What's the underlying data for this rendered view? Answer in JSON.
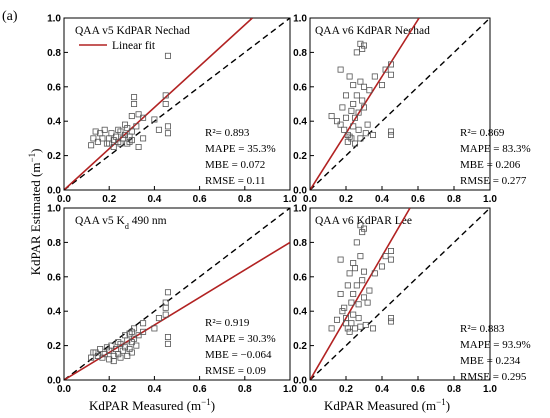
{
  "figure": {
    "panel_tag": "(a)",
    "y_axis_label_base": "KdPAR Estimated (m",
    "x_axis_label_base": "KdPAR Measured (m",
    "unit_exponent": "−1",
    "close_paren": ")"
  },
  "legend": {
    "linear_fit_label": "Linear fit"
  },
  "colors": {
    "fit_line": "#b22222",
    "one_to_one": "#000000",
    "marker": "#555555"
  },
  "chart_data": [
    {
      "type": "scatter",
      "title": "QAA v5 KdPAR Nechad",
      "xlim": [
        0,
        1
      ],
      "ylim": [
        0,
        1
      ],
      "xticks": [
        "0.0",
        "0.2",
        "0.4",
        "0.6",
        "0.8",
        "1.0"
      ],
      "yticks": [
        "0.0",
        "0.2",
        "0.4",
        "0.6",
        "0.8",
        "1.0"
      ],
      "stats": [
        "R²= 0.893",
        "MAPE = 35.3%",
        "MBE = 0.072",
        "RMSE = 0.11"
      ],
      "fit": {
        "slope": 1.2,
        "intercept": 0.0
      },
      "points": [
        [
          0.12,
          0.26
        ],
        [
          0.13,
          0.3
        ],
        [
          0.15,
          0.28
        ],
        [
          0.16,
          0.33
        ],
        [
          0.18,
          0.35
        ],
        [
          0.2,
          0.27
        ],
        [
          0.2,
          0.3
        ],
        [
          0.21,
          0.33
        ],
        [
          0.22,
          0.29
        ],
        [
          0.22,
          0.25
        ],
        [
          0.23,
          0.31
        ],
        [
          0.24,
          0.28
        ],
        [
          0.25,
          0.34
        ],
        [
          0.25,
          0.27
        ],
        [
          0.26,
          0.3
        ],
        [
          0.27,
          0.32
        ],
        [
          0.27,
          0.38
        ],
        [
          0.28,
          0.36
        ],
        [
          0.28,
          0.27
        ],
        [
          0.29,
          0.31
        ],
        [
          0.3,
          0.43
        ],
        [
          0.3,
          0.34
        ],
        [
          0.3,
          0.29
        ],
        [
          0.31,
          0.5
        ],
        [
          0.31,
          0.54
        ],
        [
          0.32,
          0.37
        ],
        [
          0.33,
          0.25
        ],
        [
          0.35,
          0.3
        ],
        [
          0.35,
          0.42
        ],
        [
          0.4,
          0.41
        ],
        [
          0.42,
          0.35
        ],
        [
          0.45,
          0.55
        ],
        [
          0.45,
          0.5
        ],
        [
          0.46,
          0.78
        ],
        [
          0.46,
          0.37
        ],
        [
          0.46,
          0.33
        ],
        [
          0.14,
          0.34
        ],
        [
          0.17,
          0.3
        ],
        [
          0.19,
          0.27
        ],
        [
          0.24,
          0.35
        ],
        [
          0.29,
          0.28
        ],
        [
          0.33,
          0.44
        ]
      ]
    },
    {
      "type": "scatter",
      "title": "QAA v6 KdPAR Nechad",
      "xlim": [
        0,
        1
      ],
      "ylim": [
        0,
        1
      ],
      "xticks": [
        "0.0",
        "0.2",
        "0.4",
        "0.6",
        "0.8",
        "1.0"
      ],
      "yticks": [
        "0.0",
        "0.2",
        "0.4",
        "0.6",
        "0.8",
        "1.0"
      ],
      "stats": [
        "R²= 0.869",
        "MAPE = 83.3%",
        "MBE = 0.206",
        "RMSE = 0.277"
      ],
      "fit": {
        "slope": 1.65,
        "intercept": 0.0
      },
      "points": [
        [
          0.12,
          0.43
        ],
        [
          0.15,
          0.4
        ],
        [
          0.17,
          0.38
        ],
        [
          0.18,
          0.48
        ],
        [
          0.19,
          0.35
        ],
        [
          0.2,
          0.55
        ],
        [
          0.2,
          0.42
        ],
        [
          0.21,
          0.32
        ],
        [
          0.21,
          0.28
        ],
        [
          0.22,
          0.31
        ],
        [
          0.22,
          0.66
        ],
        [
          0.23,
          0.46
        ],
        [
          0.23,
          0.3
        ],
        [
          0.24,
          0.5
        ],
        [
          0.24,
          0.37
        ],
        [
          0.25,
          0.27
        ],
        [
          0.25,
          0.42
        ],
        [
          0.26,
          0.8
        ],
        [
          0.26,
          0.55
        ],
        [
          0.27,
          0.45
        ],
        [
          0.27,
          0.35
        ],
        [
          0.28,
          0.63
        ],
        [
          0.28,
          0.3
        ],
        [
          0.29,
          0.82
        ],
        [
          0.29,
          0.52
        ],
        [
          0.3,
          0.84
        ],
        [
          0.3,
          0.6
        ],
        [
          0.3,
          0.48
        ],
        [
          0.31,
          0.33
        ],
        [
          0.32,
          0.38
        ],
        [
          0.33,
          0.58
        ],
        [
          0.35,
          0.32
        ],
        [
          0.36,
          0.66
        ],
        [
          0.4,
          0.61
        ],
        [
          0.42,
          0.7
        ],
        [
          0.45,
          0.73
        ],
        [
          0.45,
          0.67
        ],
        [
          0.45,
          0.34
        ],
        [
          0.45,
          0.32
        ],
        [
          0.17,
          0.7
        ],
        [
          0.24,
          0.61
        ],
        [
          0.28,
          0.85
        ]
      ]
    },
    {
      "type": "scatter",
      "title_main": "QAA v5 K",
      "title_sub": "d",
      "title_tail": " 490 nm",
      "xlim": [
        0,
        1
      ],
      "ylim": [
        0,
        1
      ],
      "xticks": [
        "0.0",
        "0.2",
        "0.4",
        "0.6",
        "0.8",
        "1.0"
      ],
      "yticks": [
        "0.0",
        "0.2",
        "0.4",
        "0.6",
        "0.8",
        "1.0"
      ],
      "stats": [
        "R²= 0.919",
        "MAPE = 30.3%",
        "MBE = −0.064",
        "RMSE = 0.09"
      ],
      "fit": {
        "slope": 0.8,
        "intercept": 0.0
      },
      "points": [
        [
          0.12,
          0.13
        ],
        [
          0.13,
          0.16
        ],
        [
          0.15,
          0.14
        ],
        [
          0.16,
          0.18
        ],
        [
          0.18,
          0.15
        ],
        [
          0.2,
          0.12
        ],
        [
          0.2,
          0.17
        ],
        [
          0.21,
          0.2
        ],
        [
          0.22,
          0.14
        ],
        [
          0.22,
          0.11
        ],
        [
          0.23,
          0.18
        ],
        [
          0.24,
          0.15
        ],
        [
          0.25,
          0.21
        ],
        [
          0.25,
          0.13
        ],
        [
          0.26,
          0.17
        ],
        [
          0.27,
          0.19
        ],
        [
          0.27,
          0.26
        ],
        [
          0.28,
          0.23
        ],
        [
          0.28,
          0.14
        ],
        [
          0.29,
          0.18
        ],
        [
          0.3,
          0.28
        ],
        [
          0.3,
          0.22
        ],
        [
          0.3,
          0.16
        ],
        [
          0.31,
          0.3
        ],
        [
          0.31,
          0.24
        ],
        [
          0.32,
          0.2
        ],
        [
          0.33,
          0.26
        ],
        [
          0.35,
          0.28
        ],
        [
          0.35,
          0.33
        ],
        [
          0.4,
          0.3
        ],
        [
          0.42,
          0.36
        ],
        [
          0.45,
          0.38
        ],
        [
          0.45,
          0.45
        ],
        [
          0.45,
          0.42
        ],
        [
          0.46,
          0.51
        ],
        [
          0.46,
          0.25
        ],
        [
          0.46,
          0.21
        ],
        [
          0.14,
          0.16
        ],
        [
          0.17,
          0.13
        ],
        [
          0.19,
          0.19
        ],
        [
          0.24,
          0.22
        ],
        [
          0.29,
          0.27
        ]
      ]
    },
    {
      "type": "scatter",
      "title": "QAA v6 KdPAR Lee",
      "xlim": [
        0,
        1
      ],
      "ylim": [
        0,
        1
      ],
      "xticks": [
        "0.0",
        "0.2",
        "0.4",
        "0.6",
        "0.8",
        "1.0"
      ],
      "yticks": [
        "0.0",
        "0.2",
        "0.4",
        "0.6",
        "0.8",
        "1.0"
      ],
      "stats": [
        "R²= 0.883",
        "MAPE = 93.9%",
        "MBE = 0.234",
        "RMSE = 0.295"
      ],
      "fit": {
        "slope": 1.8,
        "intercept": 0.0
      },
      "points": [
        [
          0.12,
          0.3
        ],
        [
          0.15,
          0.35
        ],
        [
          0.17,
          0.5
        ],
        [
          0.18,
          0.4
        ],
        [
          0.19,
          0.42
        ],
        [
          0.2,
          0.33
        ],
        [
          0.2,
          0.36
        ],
        [
          0.21,
          0.3
        ],
        [
          0.21,
          0.55
        ],
        [
          0.22,
          0.28
        ],
        [
          0.22,
          0.62
        ],
        [
          0.23,
          0.45
        ],
        [
          0.23,
          0.33
        ],
        [
          0.24,
          0.5
        ],
        [
          0.24,
          0.38
        ],
        [
          0.25,
          0.3
        ],
        [
          0.25,
          0.65
        ],
        [
          0.26,
          0.8
        ],
        [
          0.26,
          0.55
        ],
        [
          0.27,
          0.44
        ],
        [
          0.27,
          0.36
        ],
        [
          0.28,
          0.72
        ],
        [
          0.28,
          0.31
        ],
        [
          0.29,
          0.86
        ],
        [
          0.29,
          0.58
        ],
        [
          0.3,
          0.88
        ],
        [
          0.3,
          0.63
        ],
        [
          0.3,
          0.48
        ],
        [
          0.31,
          0.32
        ],
        [
          0.32,
          0.45
        ],
        [
          0.33,
          0.52
        ],
        [
          0.35,
          0.3
        ],
        [
          0.36,
          0.62
        ],
        [
          0.4,
          0.66
        ],
        [
          0.42,
          0.72
        ],
        [
          0.45,
          0.75
        ],
        [
          0.45,
          0.7
        ],
        [
          0.45,
          0.36
        ],
        [
          0.45,
          0.34
        ],
        [
          0.17,
          0.7
        ],
        [
          0.24,
          0.68
        ],
        [
          0.28,
          0.9
        ]
      ]
    }
  ]
}
